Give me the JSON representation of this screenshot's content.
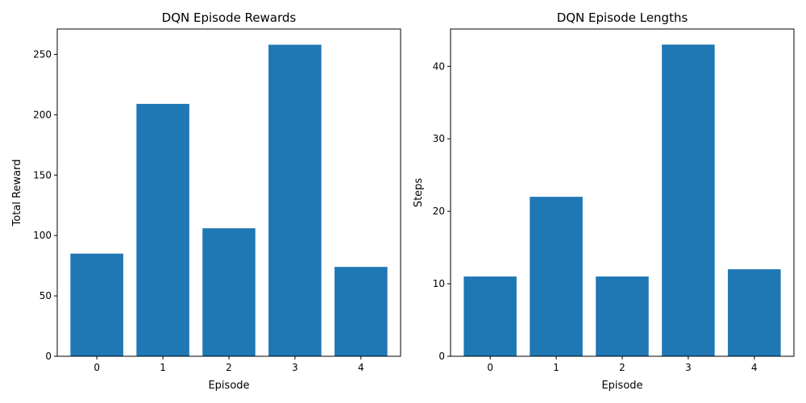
{
  "chart_data": [
    {
      "type": "bar",
      "title": "DQN Episode Rewards",
      "xlabel": "Episode",
      "ylabel": "Total Reward",
      "categories": [
        "0",
        "1",
        "2",
        "3",
        "4"
      ],
      "values": [
        85,
        209,
        106,
        258,
        74
      ],
      "ylim": [
        0,
        271
      ],
      "yticks": [
        0,
        50,
        100,
        150,
        200,
        250
      ],
      "color": "#1f77b4",
      "grid": false,
      "legend": "none"
    },
    {
      "type": "bar",
      "title": "DQN Episode Lengths",
      "xlabel": "Episode",
      "ylabel": "Steps",
      "categories": [
        "0",
        "1",
        "2",
        "3",
        "4"
      ],
      "values": [
        11,
        22,
        11,
        43,
        12
      ],
      "ylim": [
        0,
        45.15
      ],
      "yticks": [
        0,
        10,
        20,
        30,
        40
      ],
      "color": "#1f77b4",
      "grid": false,
      "legend": "none"
    }
  ]
}
